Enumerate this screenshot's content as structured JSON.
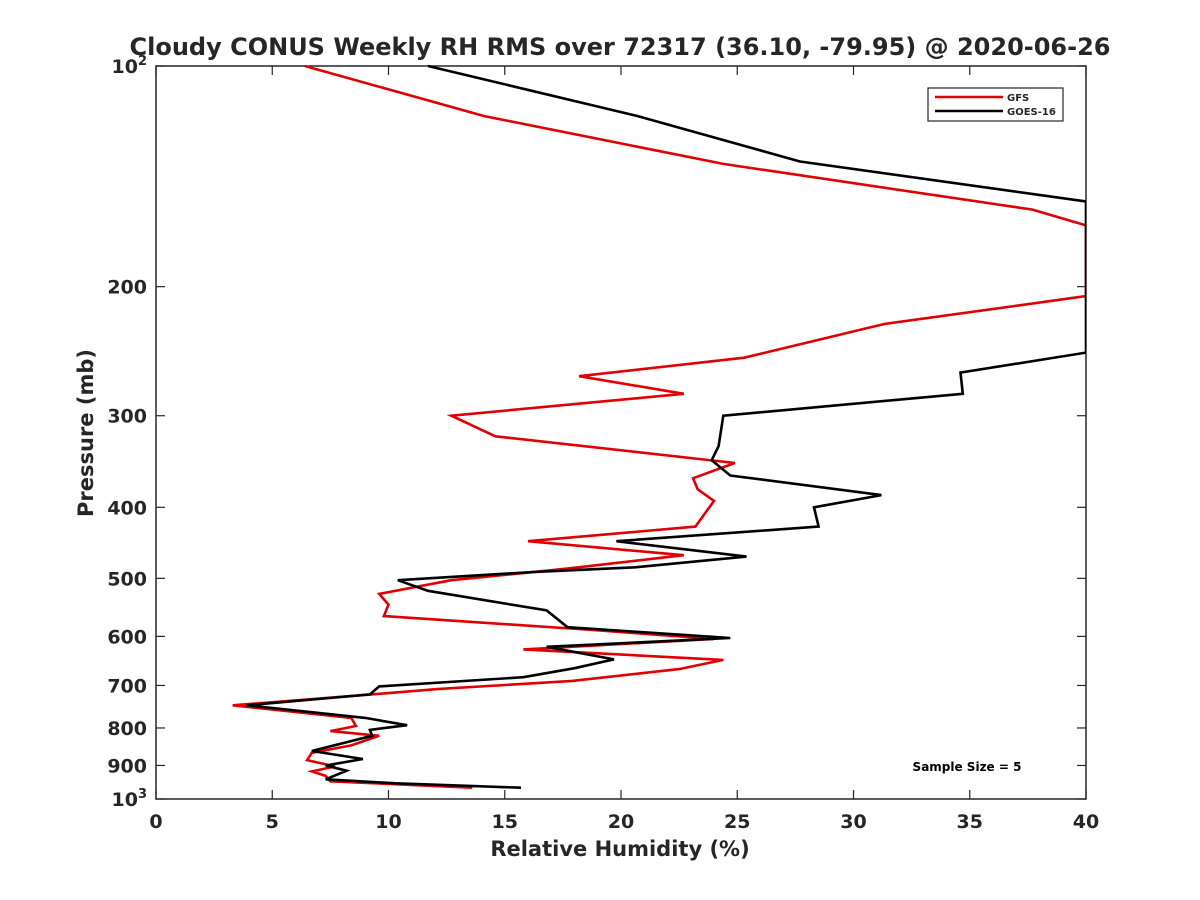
{
  "chart_data": {
    "type": "line",
    "title": "Cloudy CONUS Weekly RH RMS over 72317 (36.10, -79.95) @ 2020-06-26",
    "xlabel": "Relative Humidity (%)",
    "ylabel": "Pressure (mb)",
    "xlim": [
      0,
      40
    ],
    "ylim": [
      100,
      1000
    ],
    "y_scale": "log",
    "y_reversed": true,
    "grid": false,
    "legend_position": "top-right",
    "x_ticks": [
      {
        "value": 0,
        "label": "0"
      },
      {
        "value": 5,
        "label": "5"
      },
      {
        "value": 10,
        "label": "10"
      },
      {
        "value": 15,
        "label": "15"
      },
      {
        "value": 20,
        "label": "20"
      },
      {
        "value": 25,
        "label": "25"
      },
      {
        "value": 30,
        "label": "30"
      },
      {
        "value": 35,
        "label": "35"
      },
      {
        "value": 40,
        "label": "40"
      }
    ],
    "y_ticks": [
      {
        "value": 100,
        "label": "10",
        "sup": "2"
      },
      {
        "value": 200,
        "label": "200",
        "sup": ""
      },
      {
        "value": 300,
        "label": "300",
        "sup": ""
      },
      {
        "value": 400,
        "label": "400",
        "sup": ""
      },
      {
        "value": 500,
        "label": "500",
        "sup": ""
      },
      {
        "value": 600,
        "label": "600",
        "sup": ""
      },
      {
        "value": 700,
        "label": "700",
        "sup": ""
      },
      {
        "value": 800,
        "label": "800",
        "sup": ""
      },
      {
        "value": 900,
        "label": "900",
        "sup": ""
      },
      {
        "value": 1000,
        "label": "10",
        "sup": "3"
      }
    ],
    "annotation": "Sample Size = 5",
    "series": [
      {
        "name": "GFS",
        "color": "#e00000",
        "points": [
          [
            6.4,
            100
          ],
          [
            14.1,
            117
          ],
          [
            24.4,
            136
          ],
          [
            37.7,
            157
          ],
          [
            40,
            165
          ],
          [
            40,
            206
          ],
          [
            31.3,
            225
          ],
          [
            25.3,
            250
          ],
          [
            18.2,
            265
          ],
          [
            22.7,
            280
          ],
          [
            12.7,
            300
          ],
          [
            14.6,
            320
          ],
          [
            24.9,
            348
          ],
          [
            23.1,
            365
          ],
          [
            23.3,
            378
          ],
          [
            24.0,
            392
          ],
          [
            23.2,
            425
          ],
          [
            16.0,
            445
          ],
          [
            22.7,
            465
          ],
          [
            17.7,
            485
          ],
          [
            12.7,
            503
          ],
          [
            9.6,
            525
          ],
          [
            10.0,
            543
          ],
          [
            9.8,
            563
          ],
          [
            18.8,
            588
          ],
          [
            24.0,
            605
          ],
          [
            15.8,
            625
          ],
          [
            24.4,
            646
          ],
          [
            22.5,
            665
          ],
          [
            17.9,
            690
          ],
          [
            12.1,
            708
          ],
          [
            8.8,
            722
          ],
          [
            3.3,
            745
          ],
          [
            8.4,
            775
          ],
          [
            8.6,
            795
          ],
          [
            7.5,
            808
          ],
          [
            9.6,
            820
          ],
          [
            8.4,
            845
          ],
          [
            6.7,
            865
          ],
          [
            6.5,
            885
          ],
          [
            7.7,
            903
          ],
          [
            6.7,
            917
          ],
          [
            7.3,
            930
          ],
          [
            7.5,
            946
          ],
          [
            13.6,
            965
          ]
        ]
      },
      {
        "name": "GOES-16",
        "color": "#000000",
        "points": [
          [
            11.7,
            100
          ],
          [
            20.7,
            117
          ],
          [
            27.7,
            135
          ],
          [
            40,
            153
          ],
          [
            40,
            246
          ],
          [
            34.6,
            262
          ],
          [
            34.7,
            280
          ],
          [
            24.4,
            300
          ],
          [
            24.2,
            330
          ],
          [
            23.9,
            345
          ],
          [
            24.7,
            362
          ],
          [
            31.2,
            385
          ],
          [
            28.3,
            400
          ],
          [
            28.5,
            425
          ],
          [
            19.8,
            445
          ],
          [
            25.4,
            467
          ],
          [
            20.6,
            483
          ],
          [
            16.3,
            490
          ],
          [
            10.4,
            503
          ],
          [
            11.7,
            520
          ],
          [
            16.8,
            553
          ],
          [
            17.7,
            583
          ],
          [
            24.7,
            603
          ],
          [
            16.8,
            620
          ],
          [
            19.7,
            645
          ],
          [
            18.0,
            663
          ],
          [
            15.8,
            682
          ],
          [
            9.6,
            702
          ],
          [
            9.2,
            720
          ],
          [
            3.9,
            745
          ],
          [
            9.0,
            775
          ],
          [
            10.8,
            793
          ],
          [
            9.2,
            805
          ],
          [
            9.3,
            820
          ],
          [
            6.7,
            860
          ],
          [
            8.9,
            882
          ],
          [
            7.3,
            900
          ],
          [
            8.2,
            915
          ],
          [
            7.3,
            940
          ],
          [
            10.3,
            952
          ],
          [
            15.7,
            965
          ]
        ]
      }
    ]
  }
}
